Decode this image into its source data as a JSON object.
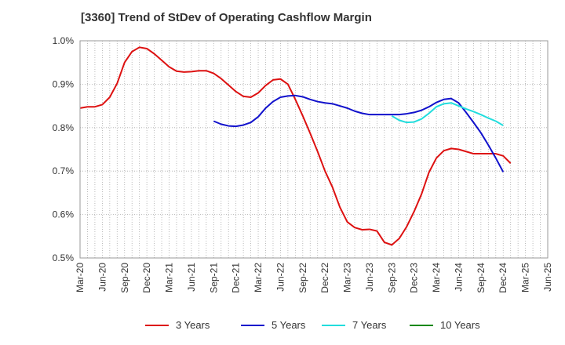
{
  "chart_data": {
    "type": "line",
    "title": "[3360]  Trend of StDev of Operating Cashflow Margin",
    "xlabel": "",
    "ylabel": "",
    "ylim": [
      0.5,
      1.0
    ],
    "y_unit": "%",
    "y_ticks": [
      "0.5%",
      "0.6%",
      "0.7%",
      "0.8%",
      "0.9%",
      "1.0%"
    ],
    "x_ticks": [
      "Mar-20",
      "Jun-20",
      "Sep-20",
      "Dec-20",
      "Mar-21",
      "Jun-21",
      "Sep-21",
      "Dec-21",
      "Mar-22",
      "Jun-22",
      "Sep-22",
      "Dec-22",
      "Mar-23",
      "Jun-23",
      "Sep-23",
      "Dec-23",
      "Mar-24",
      "Jun-24",
      "Sep-24",
      "Dec-24",
      "Mar-25",
      "Jun-25"
    ],
    "grid": true,
    "legend_position": "bottom",
    "series": [
      {
        "name": "3 Years",
        "color": "#dd1111",
        "start": "Mar-20",
        "values": [
          0.845,
          0.848,
          0.848,
          0.853,
          0.87,
          0.902,
          0.95,
          0.975,
          0.985,
          0.982,
          0.97,
          0.955,
          0.94,
          0.93,
          0.928,
          0.929,
          0.931,
          0.931,
          0.925,
          0.913,
          0.898,
          0.883,
          0.872,
          0.87,
          0.88,
          0.897,
          0.91,
          0.912,
          0.9,
          0.865,
          0.827,
          0.787,
          0.745,
          0.7,
          0.663,
          0.617,
          0.583,
          0.57,
          0.565,
          0.566,
          0.562,
          0.536,
          0.53,
          0.545,
          0.572,
          0.607,
          0.647,
          0.697,
          0.73,
          0.747,
          0.752,
          0.75,
          0.745,
          0.74,
          0.74,
          0.74,
          0.74,
          0.735,
          0.718
        ]
      },
      {
        "name": "5 Years",
        "color": "#1111cc",
        "start": "Sep-21",
        "values": [
          0.815,
          0.808,
          0.804,
          0.803,
          0.806,
          0.812,
          0.825,
          0.845,
          0.86,
          0.87,
          0.873,
          0.874,
          0.871,
          0.865,
          0.86,
          0.857,
          0.855,
          0.85,
          0.845,
          0.838,
          0.833,
          0.83,
          0.83,
          0.83,
          0.83,
          0.83,
          0.832,
          0.835,
          0.84,
          0.848,
          0.858,
          0.865,
          0.867,
          0.857,
          0.835,
          0.812,
          0.788,
          0.76,
          0.73,
          0.698
        ]
      },
      {
        "name": "7 Years",
        "color": "#22dddd",
        "start": "Sep-23",
        "values": [
          0.827,
          0.817,
          0.812,
          0.813,
          0.82,
          0.833,
          0.848,
          0.855,
          0.857,
          0.85,
          0.843,
          0.837,
          0.83,
          0.822,
          0.815,
          0.805
        ]
      },
      {
        "name": "10 Years",
        "color": "#118811",
        "start": "Mar-25",
        "values": []
      }
    ]
  }
}
